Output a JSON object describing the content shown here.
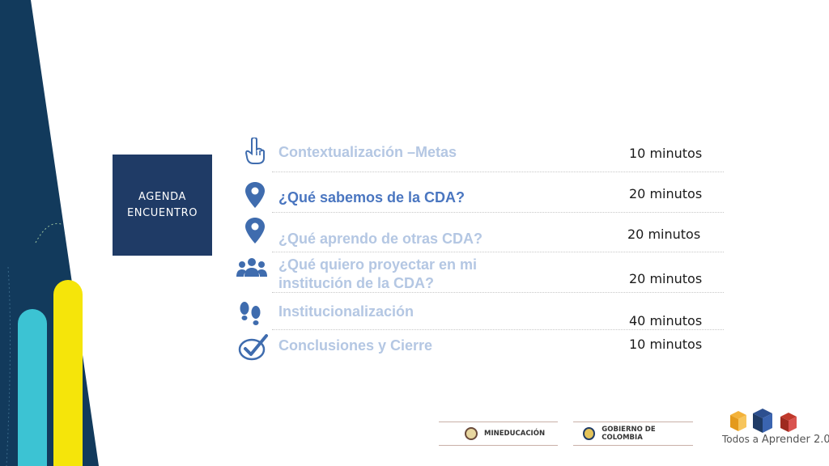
{
  "agenda_box": {
    "line1": "AGENDA",
    "line2": "ENCUENTRO"
  },
  "items": [
    {
      "icon": "pointing-finger-icon",
      "label": "Contextualización  –Metas",
      "time": "10 minutos"
    },
    {
      "icon": "location-pin-icon",
      "label": "¿Qué sabemos de la CDA?",
      "time": "20 minutos"
    },
    {
      "icon": "location-pin-icon",
      "label": "¿Qué aprendo de otras CDA?",
      "time": "20 minutos"
    },
    {
      "icon": "group-people-icon",
      "label_line1": "¿Qué quiero proyectar en mi",
      "label_line2": "institución de la CDA?",
      "time": "20 minutos"
    },
    {
      "icon": "footprints-icon",
      "label": "Institucionalización",
      "time": "40 minutos"
    },
    {
      "icon": "checkmark-icon",
      "label": "Conclusiones y Cierre",
      "time": "10 minutos"
    }
  ],
  "colors": {
    "navy": "#1f3b66",
    "dark_panel": "#123a5c",
    "active_label": "#4a76c0",
    "inactive_label": "#b4c7e3",
    "icon_blue": "#3f6cae",
    "yellow": "#f5e50a",
    "cyan": "#3cc3d3"
  },
  "footer": {
    "mineducacion": "MINEDUCACIÓN",
    "gobierno": "GOBIERNO DE COLOMBIA",
    "brand_prefix": "Todos a ",
    "brand_name": "Aprender 2.0"
  }
}
